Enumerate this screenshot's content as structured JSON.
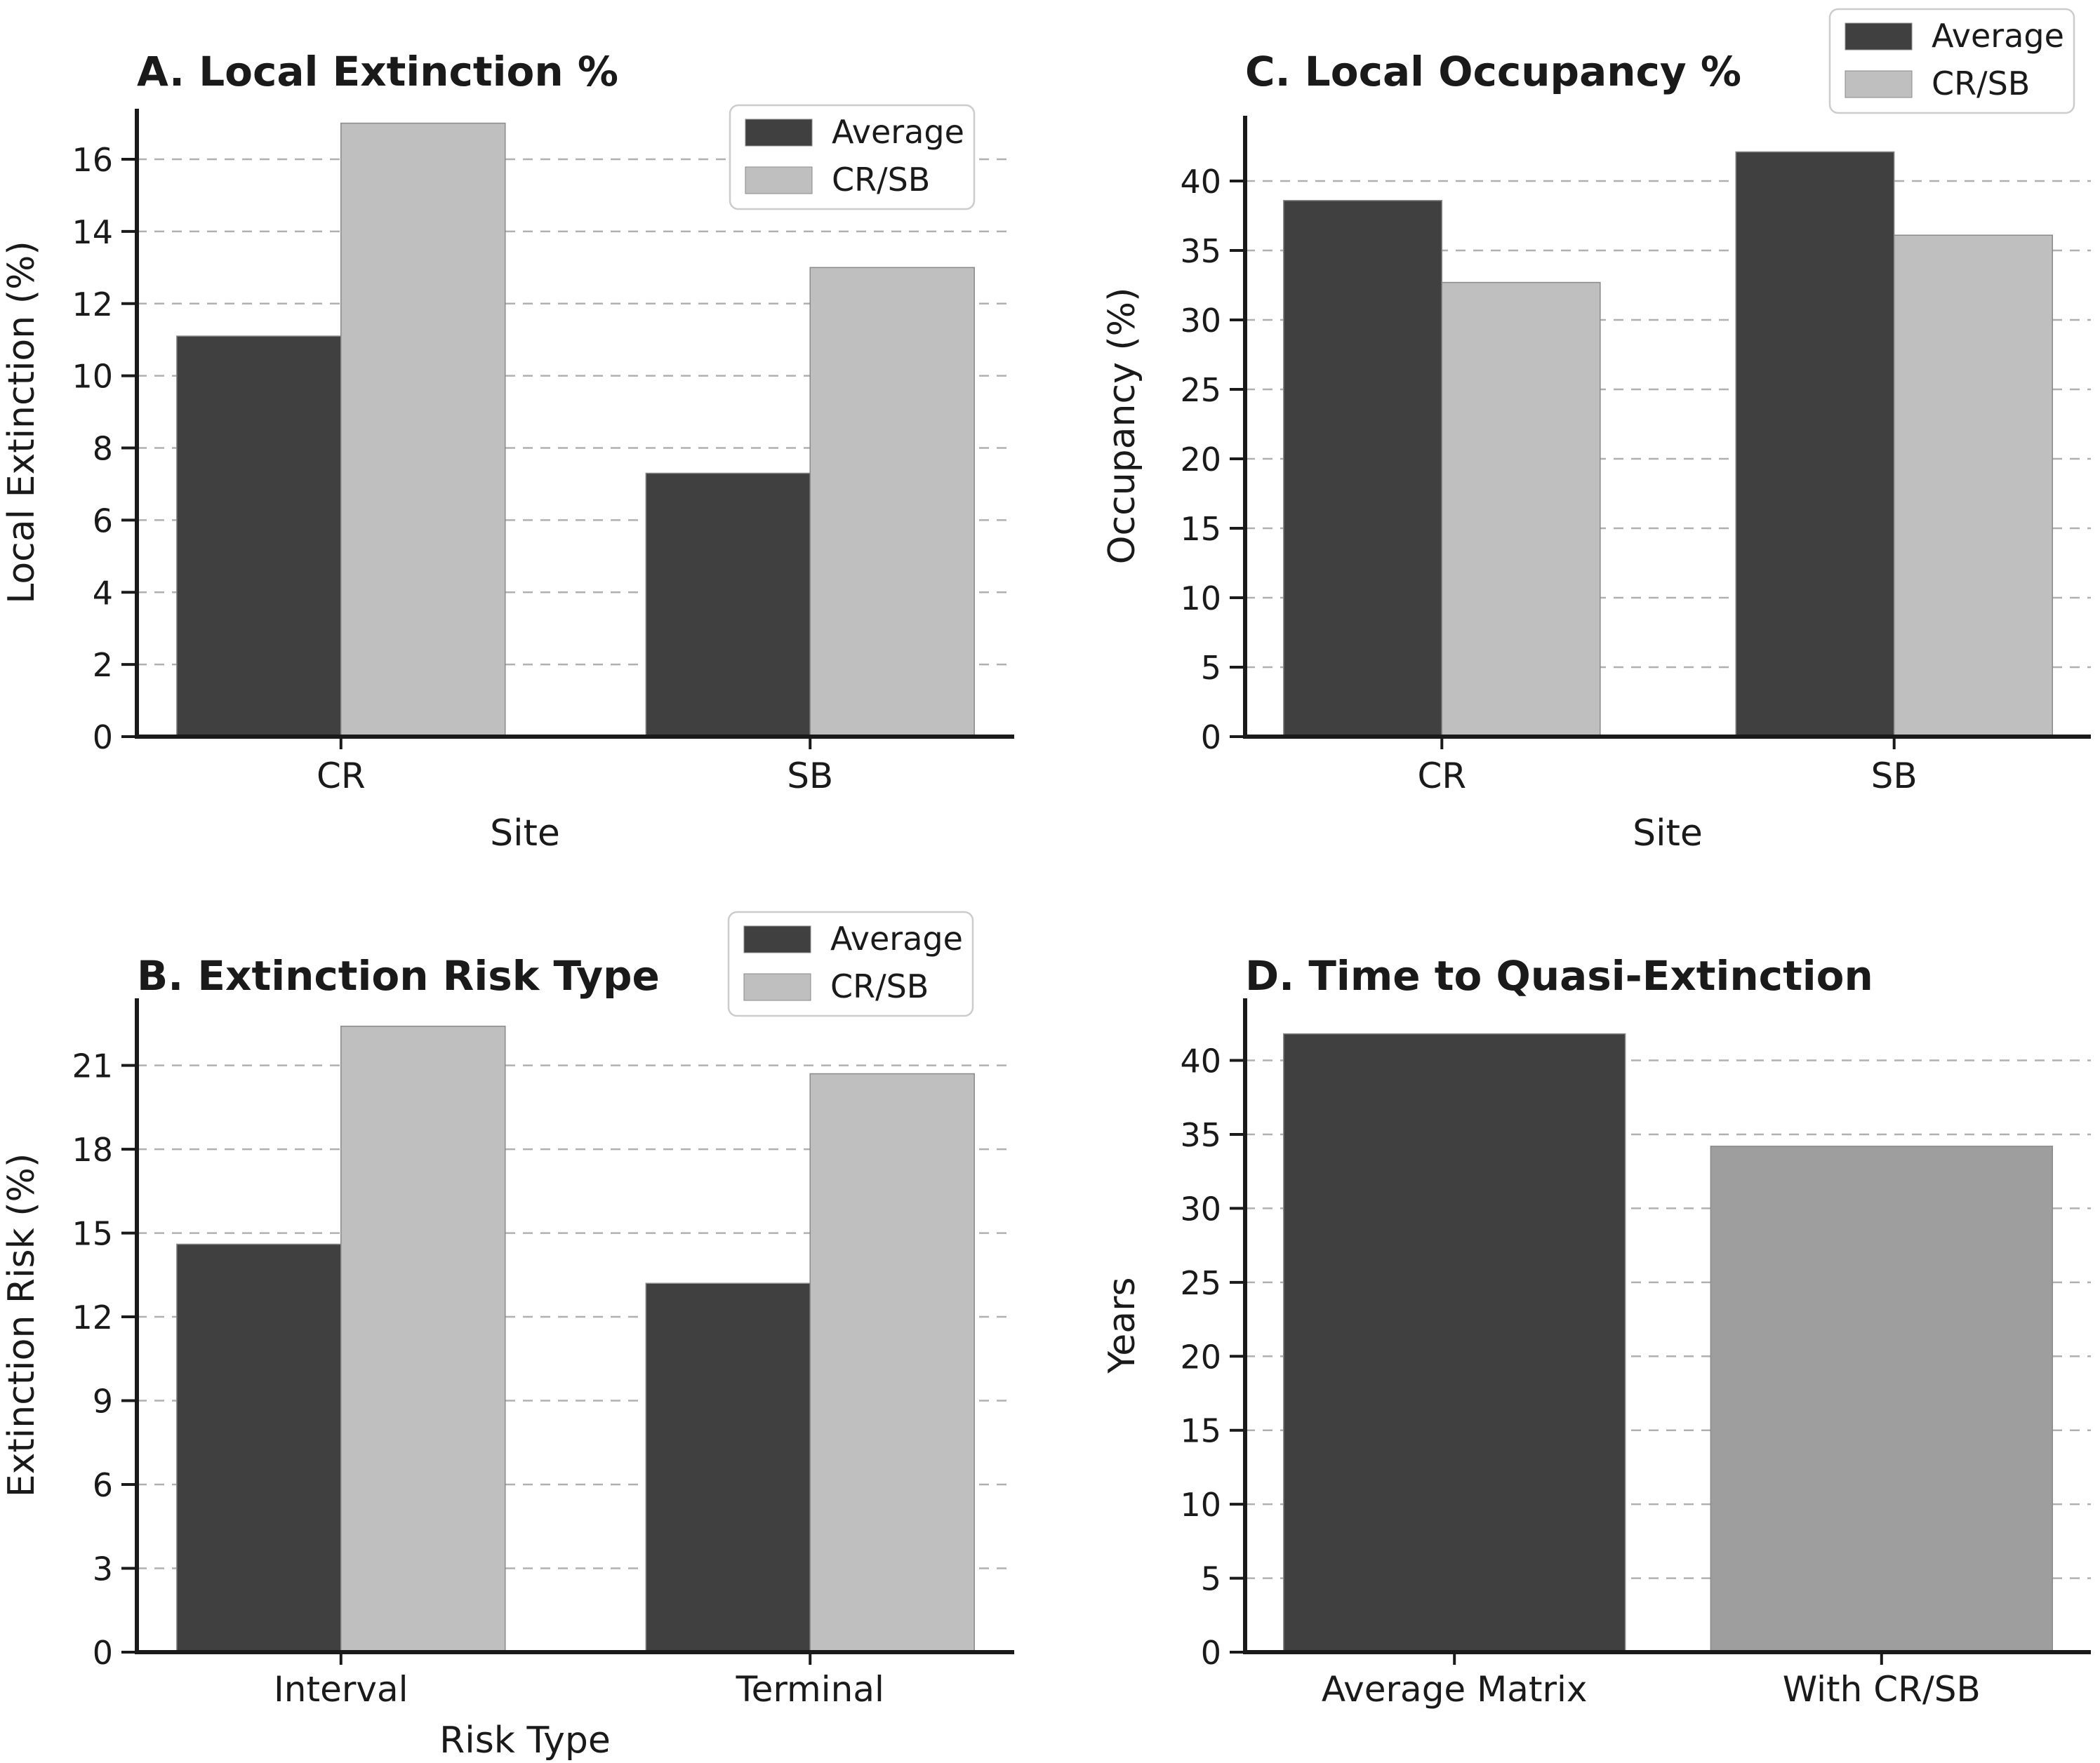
{
  "figure": {
    "background": "#ffffff",
    "grid_on": true,
    "panel_order": [
      "A",
      "C",
      "B",
      "D"
    ]
  },
  "palette": {
    "dark": "#404040",
    "light": "#bfbfbf",
    "medium": "#9e9e9e",
    "grid": "#b0b0b0",
    "axis": "#1a1a1a",
    "legend_border": "#cccccc"
  },
  "legend": {
    "average_label": "Average",
    "crsb_label": "CR/SB"
  },
  "chart_data": [
    {
      "id": "A",
      "type": "bar",
      "title": "A. Local Extinction %",
      "xlabel": "Site",
      "ylabel": "Local Extinction (%)",
      "categories": [
        "CR",
        "SB"
      ],
      "series": [
        {
          "name": "Average",
          "color_key": "dark",
          "values": [
            11.1,
            7.3
          ]
        },
        {
          "name": "CR/SB",
          "color_key": "light",
          "values": [
            17.0,
            13.0
          ]
        }
      ],
      "yticks": [
        0,
        2,
        4,
        6,
        8,
        10,
        12,
        14,
        16
      ],
      "ylim": [
        0,
        17.4
      ],
      "grid": true,
      "legend": {
        "show": true,
        "position": "inside-top-right",
        "entries": [
          "Average",
          "CR/SB"
        ]
      }
    },
    {
      "id": "C",
      "type": "bar",
      "title": "C. Local Occupancy %",
      "xlabel": "Site",
      "ylabel": "Occupancy (%)",
      "categories": [
        "CR",
        "SB"
      ],
      "series": [
        {
          "name": "Average",
          "color_key": "dark",
          "values": [
            38.6,
            42.1
          ]
        },
        {
          "name": "CR/SB",
          "color_key": "light",
          "values": [
            32.7,
            36.1
          ]
        }
      ],
      "yticks": [
        0,
        5,
        10,
        15,
        20,
        25,
        30,
        35,
        40
      ],
      "ylim": [
        0,
        44.7
      ],
      "grid": true,
      "legend": {
        "show": true,
        "position": "figure-top-right",
        "entries": [
          "Average",
          "CR/SB"
        ]
      }
    },
    {
      "id": "B",
      "type": "bar",
      "title": "B. Extinction Risk Type",
      "xlabel": "Risk Type",
      "ylabel": "Extinction Risk (%)",
      "categories": [
        "Interval",
        "Terminal"
      ],
      "series": [
        {
          "name": "Average",
          "color_key": "dark",
          "values": [
            14.6,
            13.2
          ]
        },
        {
          "name": "CR/SB",
          "color_key": "light",
          "values": [
            22.4,
            20.7
          ]
        }
      ],
      "yticks": [
        0,
        3,
        6,
        9,
        12,
        15,
        18,
        21
      ],
      "ylim": [
        0,
        23.4
      ],
      "grid": true,
      "legend": {
        "show": true,
        "position": "above-top-right",
        "entries": [
          "Average",
          "CR/SB"
        ]
      }
    },
    {
      "id": "D",
      "type": "bar",
      "title": "D. Time to Quasi-Extinction",
      "xlabel": "",
      "ylabel": "Years",
      "categories": [
        "Average Matrix",
        "With CR/SB"
      ],
      "series": [
        {
          "name": "",
          "color_key": "dark",
          "values": [
            41.8,
            34.2
          ]
        }
      ],
      "bar_colors": [
        "dark",
        "medium"
      ],
      "yticks": [
        0,
        5,
        10,
        15,
        20,
        25,
        30,
        35,
        40
      ],
      "ylim": [
        0,
        44.2
      ],
      "grid": true,
      "legend": {
        "show": false,
        "position": null,
        "entries": []
      }
    }
  ]
}
